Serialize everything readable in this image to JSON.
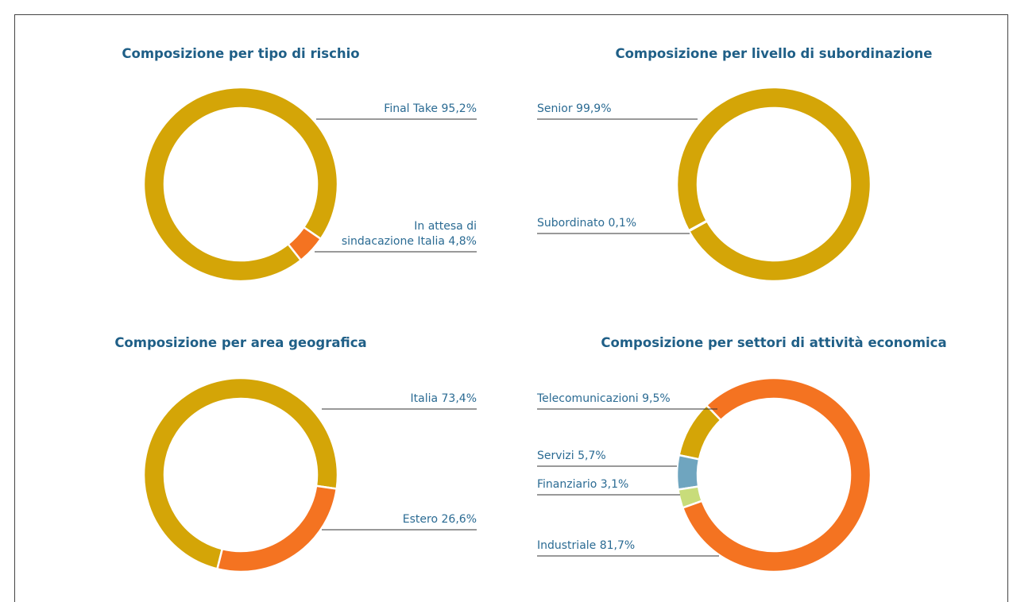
{
  "chart_data": [
    {
      "type": "donut",
      "title": "Composizione per tipo di rischio",
      "categories": [
        "Final Take",
        "In attesa di sindacazione Italia"
      ],
      "values": [
        95.2,
        4.8
      ],
      "value_labels": [
        "95,2%",
        "4,8%"
      ],
      "colors": [
        "#d4a507",
        "#f47321"
      ]
    },
    {
      "type": "donut",
      "title": "Composizione per livello di subordinazione",
      "categories": [
        "Senior",
        "Subordinato"
      ],
      "values": [
        99.9,
        0.1
      ],
      "value_labels": [
        "99,9%",
        "0,1%"
      ],
      "colors": [
        "#d4a507",
        "#f47321"
      ]
    },
    {
      "type": "donut",
      "title": "Composizione per area geografica",
      "categories": [
        "Italia",
        "Estero"
      ],
      "values": [
        73.4,
        26.6
      ],
      "value_labels": [
        "73,4%",
        "26,6%"
      ],
      "colors": [
        "#d4a507",
        "#f47321"
      ]
    },
    {
      "type": "donut",
      "title": "Composizione per settori di attività economica",
      "categories": [
        "Telecomunicazioni",
        "Servizi",
        "Finanziario",
        "Industriale"
      ],
      "values": [
        9.5,
        5.7,
        3.1,
        81.7
      ],
      "value_labels": [
        "9,5%",
        "5,7%",
        "3,1%",
        "81,7%"
      ],
      "colors": [
        "#d4a507",
        "#6fa5bf",
        "#c8dc7a",
        "#f47321"
      ]
    }
  ]
}
